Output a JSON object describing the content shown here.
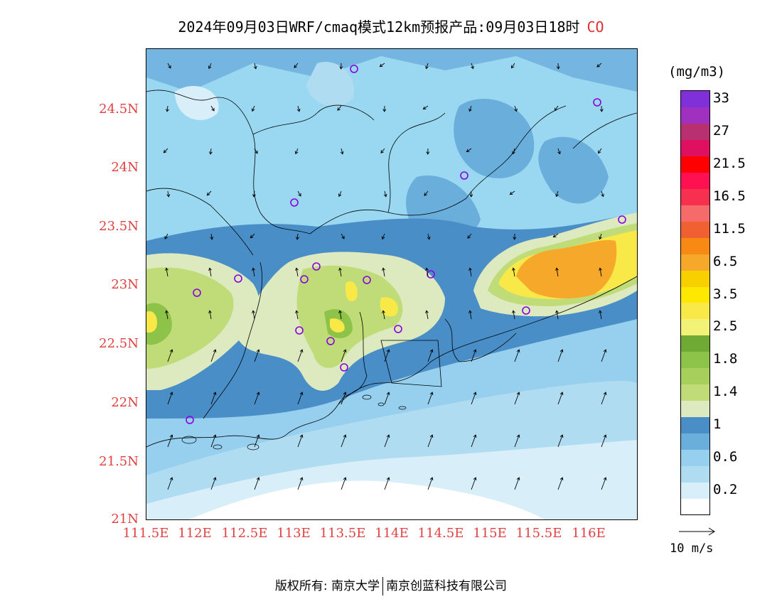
{
  "title": {
    "text": "2024年09月03日WRF/cmaq模式12km预报产品:09月03日18时",
    "species": "CO"
  },
  "axes": {
    "lat_labels": [
      "24.5N",
      "24N",
      "23.5N",
      "23N",
      "22.5N",
      "22N",
      "21.5N",
      "21N"
    ],
    "lon_labels": [
      "111.5E",
      "112E",
      "112.5E",
      "113E",
      "113.5E",
      "114E",
      "114.5E",
      "115E",
      "115.5E",
      "116E"
    ]
  },
  "colorbar": {
    "unit": "(mg/m3)",
    "colors": [
      "#ffffff",
      "#d8eef8",
      "#b0dcf2",
      "#96d0ee",
      "#6aaedc",
      "#4a8ec8",
      "#dde9bf",
      "#c0dc78",
      "#a6cf5c",
      "#8cc348",
      "#6faa34",
      "#f2f276",
      "#f8e848",
      "#ffe800",
      "#f8d000",
      "#f6a82a",
      "#f88a14",
      "#f06030",
      "#f66a6a",
      "#f83050",
      "#ff1050",
      "#ff0000",
      "#e01060",
      "#b83070",
      "#a030c0",
      "#8030d8"
    ],
    "labels": [
      "0.2",
      "0.6",
      "1",
      "1.4",
      "1.8",
      "2.5",
      "3.5",
      "6.5",
      "11.5",
      "16.5",
      "21.5",
      "27",
      "33"
    ]
  },
  "vector_reference": {
    "label": "10 m/s"
  },
  "footer": {
    "left": "版权所有: 南京大学",
    "right": "南京创蓝科技有限公司"
  }
}
